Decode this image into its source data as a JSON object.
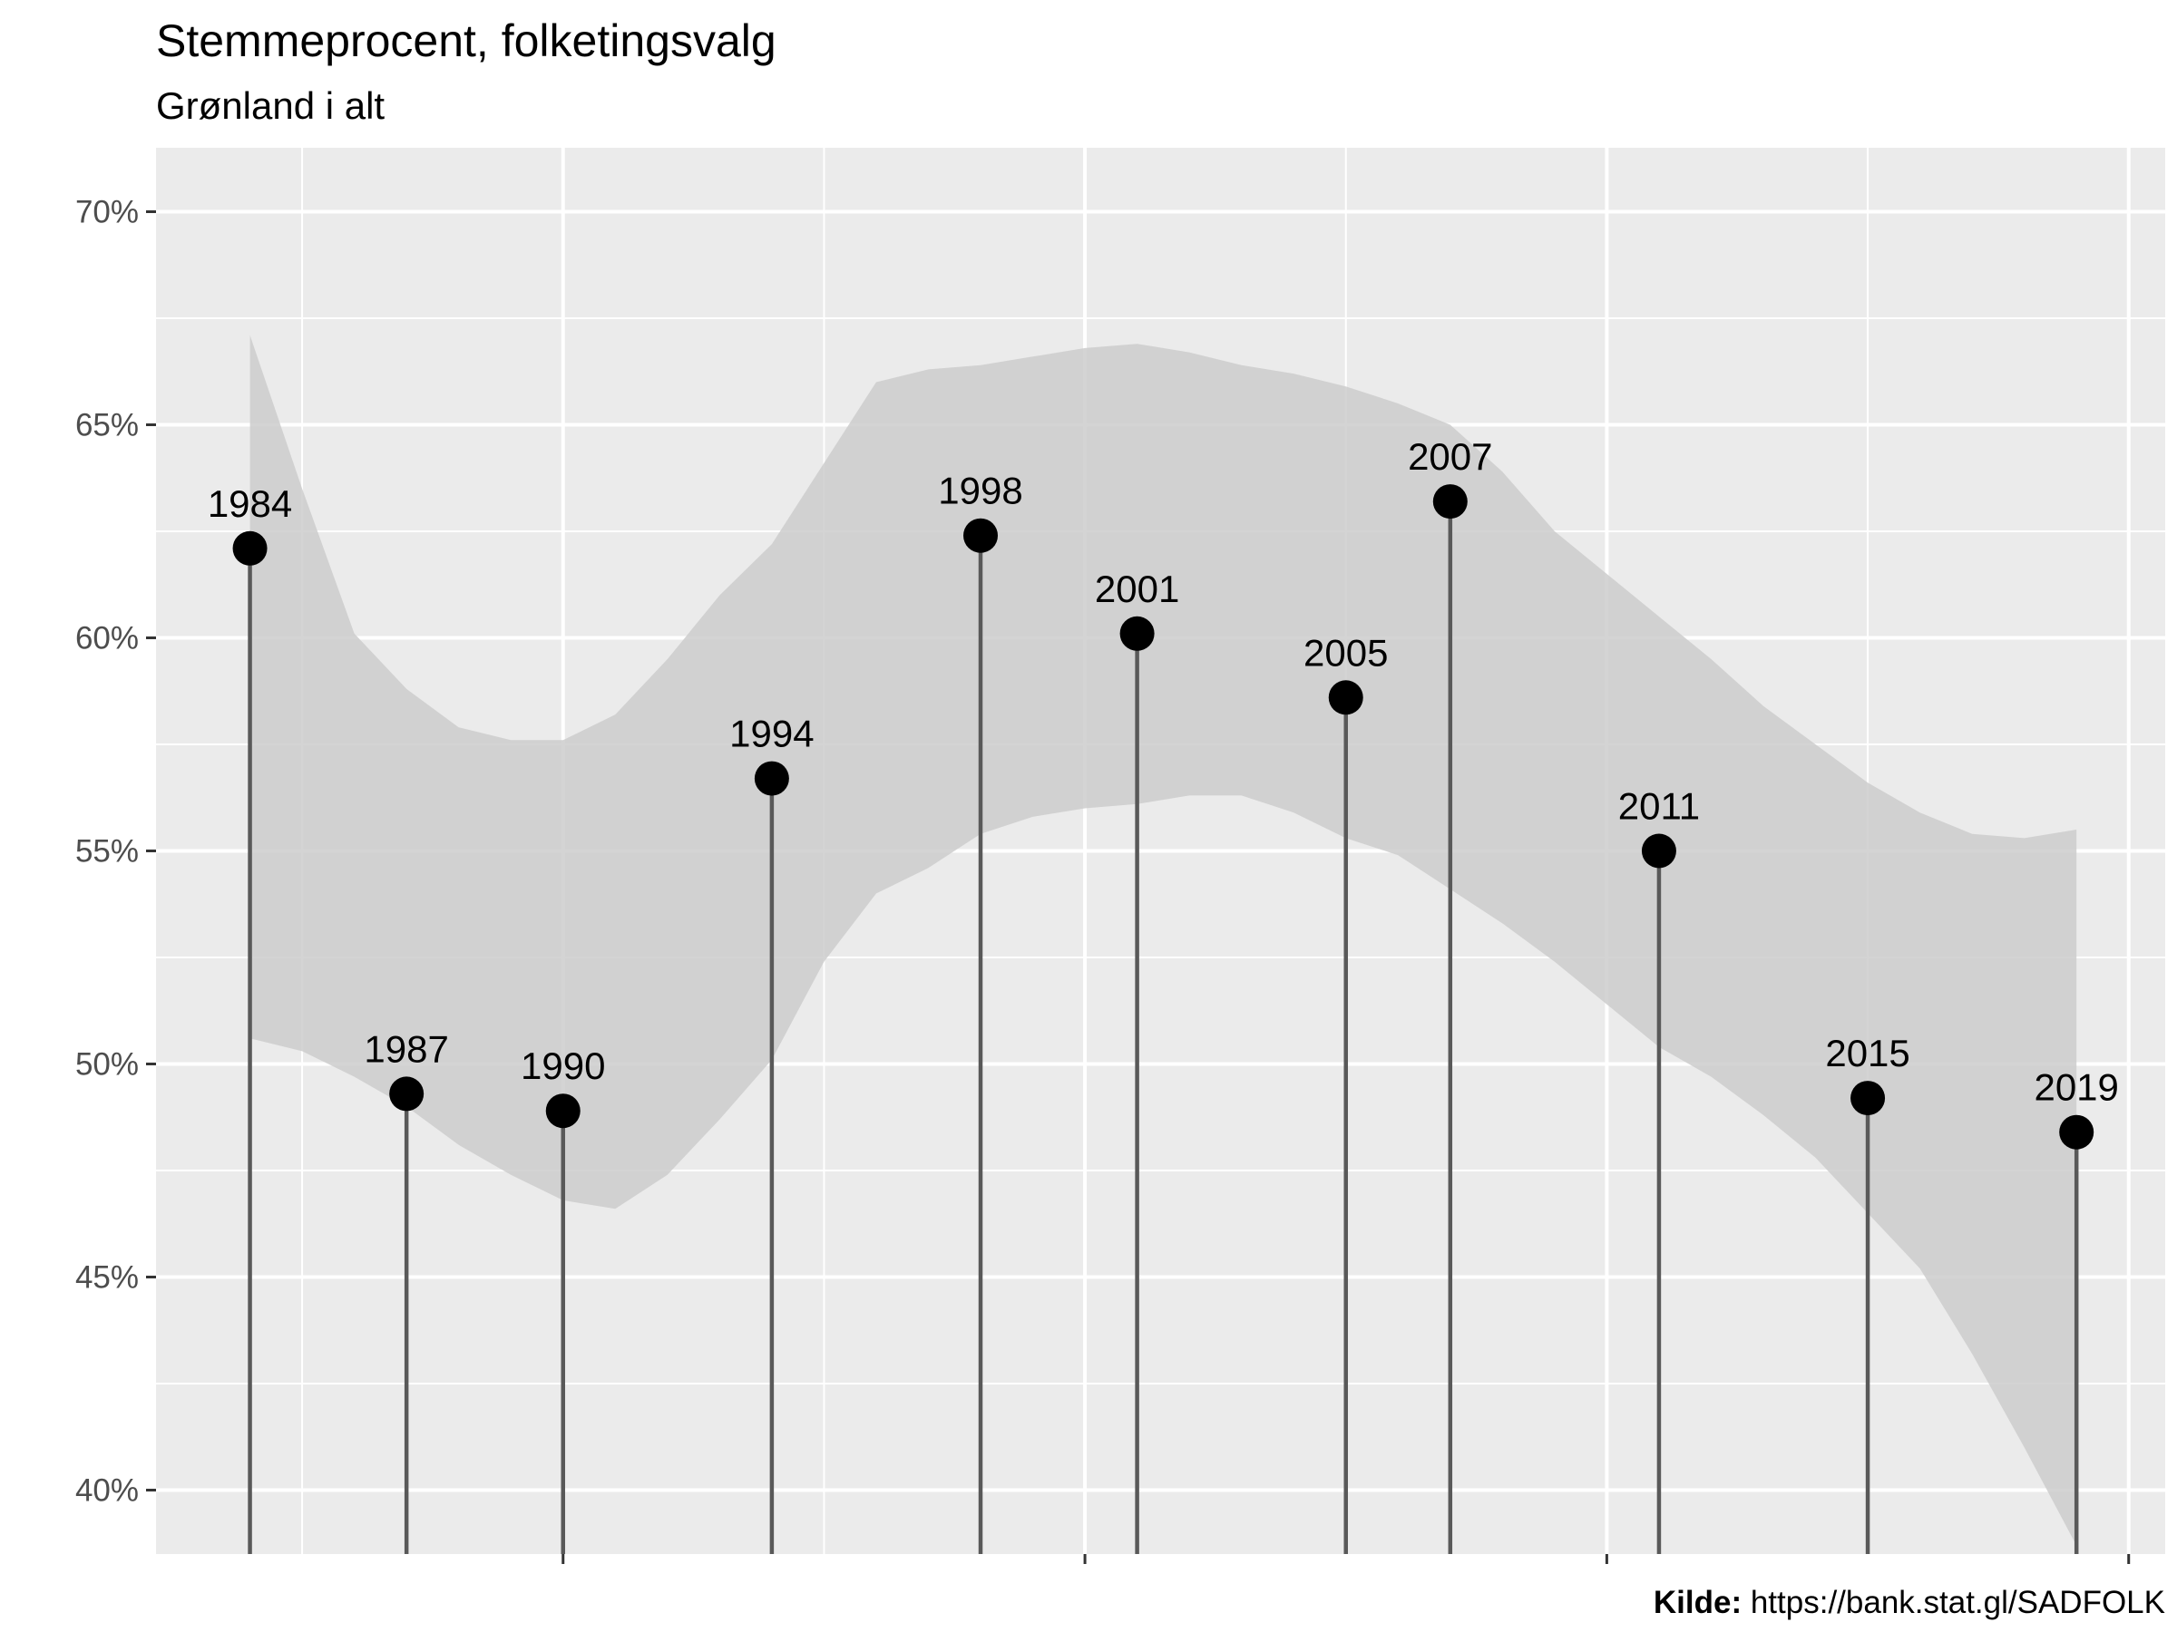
{
  "chart_data": {
    "type": "lollipop",
    "title": "Stemmeprocent, folketingsvalg",
    "subtitle": "Grønland i alt",
    "caption_label": "Kilde:",
    "caption_url": "https://bank.stat.gl/SADFOLK",
    "y_format": "percent",
    "ylim": [
      0.385,
      0.715
    ],
    "xlim": [
      1982.2,
      2020.7
    ],
    "yticks": [
      0.4,
      0.45,
      0.5,
      0.55,
      0.6,
      0.65,
      0.7
    ],
    "ytick_labels": [
      "40%",
      "45%",
      "50%",
      "55%",
      "60%",
      "65%",
      "70%"
    ],
    "x_major_ticks": [
      1990,
      2000,
      2010,
      2020
    ],
    "x_minor_grid": [
      1985,
      1995,
      2005,
      2015
    ],
    "grid": true,
    "colors": {
      "panel_bg": "#ebebeb",
      "grid": "#ffffff",
      "ribbon": "#cccccc",
      "stem": "#595959",
      "point": "#000000"
    },
    "points": [
      {
        "label": "1984",
        "x": 1984.0,
        "y": 0.621
      },
      {
        "label": "1987",
        "x": 1987.0,
        "y": 0.493
      },
      {
        "label": "1990",
        "x": 1990.0,
        "y": 0.489
      },
      {
        "label": "1994",
        "x": 1994.0,
        "y": 0.567
      },
      {
        "label": "1998",
        "x": 1998.0,
        "y": 0.624
      },
      {
        "label": "2001",
        "x": 2001.0,
        "y": 0.601
      },
      {
        "label": "2005",
        "x": 2005.0,
        "y": 0.586
      },
      {
        "label": "2007",
        "x": 2007.0,
        "y": 0.632
      },
      {
        "label": "2011",
        "x": 2011.0,
        "y": 0.55
      },
      {
        "label": "2015",
        "x": 2015.0,
        "y": 0.492
      },
      {
        "label": "2019",
        "x": 2019.0,
        "y": 0.484
      }
    ],
    "smooth_band": [
      {
        "x": 1984.0,
        "lower": 0.506,
        "upper": 0.671
      },
      {
        "x": 1985.0,
        "lower": 0.503,
        "upper": 0.635
      },
      {
        "x": 1986.0,
        "lower": 0.497,
        "upper": 0.601
      },
      {
        "x": 1987.0,
        "lower": 0.49,
        "upper": 0.588
      },
      {
        "x": 1988.0,
        "lower": 0.481,
        "upper": 0.579
      },
      {
        "x": 1989.0,
        "lower": 0.474,
        "upper": 0.576
      },
      {
        "x": 1990.0,
        "lower": 0.468,
        "upper": 0.576
      },
      {
        "x": 1991.0,
        "lower": 0.466,
        "upper": 0.582
      },
      {
        "x": 1992.0,
        "lower": 0.474,
        "upper": 0.595
      },
      {
        "x": 1993.0,
        "lower": 0.487,
        "upper": 0.61
      },
      {
        "x": 1994.0,
        "lower": 0.501,
        "upper": 0.622
      },
      {
        "x": 1995.0,
        "lower": 0.524,
        "upper": 0.641
      },
      {
        "x": 1996.0,
        "lower": 0.54,
        "upper": 0.66
      },
      {
        "x": 1997.0,
        "lower": 0.546,
        "upper": 0.663
      },
      {
        "x": 1998.0,
        "lower": 0.554,
        "upper": 0.664
      },
      {
        "x": 1999.0,
        "lower": 0.558,
        "upper": 0.666
      },
      {
        "x": 2000.0,
        "lower": 0.56,
        "upper": 0.668
      },
      {
        "x": 2001.0,
        "lower": 0.561,
        "upper": 0.669
      },
      {
        "x": 2002.0,
        "lower": 0.563,
        "upper": 0.667
      },
      {
        "x": 2003.0,
        "lower": 0.563,
        "upper": 0.664
      },
      {
        "x": 2004.0,
        "lower": 0.559,
        "upper": 0.662
      },
      {
        "x": 2005.0,
        "lower": 0.553,
        "upper": 0.659
      },
      {
        "x": 2006.0,
        "lower": 0.549,
        "upper": 0.655
      },
      {
        "x": 2007.0,
        "lower": 0.541,
        "upper": 0.65
      },
      {
        "x": 2008.0,
        "lower": 0.533,
        "upper": 0.639
      },
      {
        "x": 2009.0,
        "lower": 0.524,
        "upper": 0.625
      },
      {
        "x": 2010.0,
        "lower": 0.514,
        "upper": 0.615
      },
      {
        "x": 2011.0,
        "lower": 0.504,
        "upper": 0.605
      },
      {
        "x": 2012.0,
        "lower": 0.497,
        "upper": 0.595
      },
      {
        "x": 2013.0,
        "lower": 0.488,
        "upper": 0.584
      },
      {
        "x": 2014.0,
        "lower": 0.478,
        "upper": 0.575
      },
      {
        "x": 2015.0,
        "lower": 0.465,
        "upper": 0.566
      },
      {
        "x": 2016.0,
        "lower": 0.452,
        "upper": 0.559
      },
      {
        "x": 2017.0,
        "lower": 0.432,
        "upper": 0.554
      },
      {
        "x": 2018.0,
        "lower": 0.41,
        "upper": 0.553
      },
      {
        "x": 2019.0,
        "lower": 0.387,
        "upper": 0.555
      }
    ]
  }
}
